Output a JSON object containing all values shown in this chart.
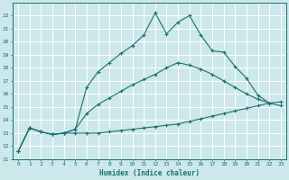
{
  "xlabel": "Humidex (Indice chaleur)",
  "xlim": [
    -0.5,
    23.5
  ],
  "ylim": [
    11,
    23
  ],
  "xticks": [
    0,
    1,
    2,
    3,
    4,
    5,
    6,
    7,
    8,
    9,
    10,
    11,
    12,
    13,
    14,
    15,
    16,
    17,
    18,
    19,
    20,
    21,
    22,
    23
  ],
  "yticks": [
    11,
    12,
    13,
    14,
    15,
    16,
    17,
    18,
    19,
    20,
    21,
    22
  ],
  "background_color": "#cce8ea",
  "grid_color": "#ffffff",
  "line_color": "#1a7070",
  "series1_x": [
    0,
    1,
    2,
    3,
    4,
    5,
    6,
    7,
    8,
    9,
    10,
    11,
    12,
    13,
    14,
    15,
    16,
    17,
    18,
    19,
    20,
    21,
    22,
    23
  ],
  "series1_y": [
    11.6,
    13.4,
    13.1,
    12.9,
    13.0,
    13.0,
    13.0,
    13.0,
    13.1,
    13.2,
    13.3,
    13.4,
    13.5,
    13.6,
    13.7,
    13.9,
    14.1,
    14.3,
    14.5,
    14.7,
    14.9,
    15.1,
    15.3,
    15.4
  ],
  "series2_x": [
    0,
    1,
    2,
    3,
    4,
    5,
    6,
    7,
    8,
    9,
    10,
    11,
    12,
    13,
    14,
    15,
    16,
    17,
    18,
    19,
    20,
    21,
    22,
    23
  ],
  "series2_y": [
    11.6,
    13.4,
    13.1,
    12.9,
    13.0,
    13.3,
    14.5,
    15.2,
    15.7,
    16.2,
    16.7,
    17.1,
    17.5,
    18.0,
    18.4,
    18.2,
    17.9,
    17.5,
    17.0,
    16.5,
    16.0,
    15.6,
    15.3,
    15.1
  ],
  "series3_x": [
    0,
    1,
    2,
    3,
    4,
    5,
    6,
    7,
    8,
    9,
    10,
    11,
    12,
    13,
    14,
    15,
    16,
    17,
    18,
    19,
    20,
    21,
    22
  ],
  "series3_y": [
    11.6,
    13.4,
    13.1,
    12.9,
    13.0,
    13.3,
    16.5,
    17.7,
    18.4,
    19.1,
    19.7,
    20.5,
    22.2,
    20.6,
    21.5,
    22.0,
    20.5,
    19.3,
    19.2,
    18.1,
    17.2,
    15.9,
    15.3
  ]
}
